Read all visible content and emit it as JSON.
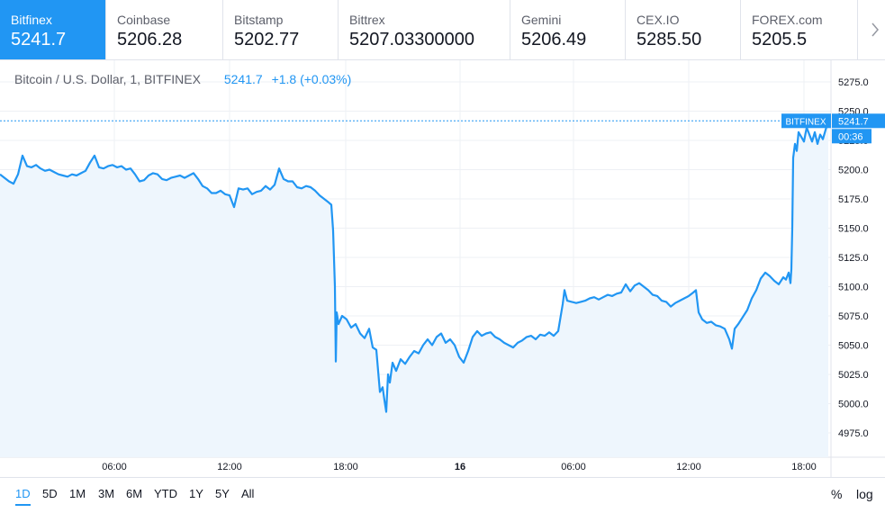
{
  "tabs": [
    {
      "name": "Bitfinex",
      "price": "5241.7",
      "active": true
    },
    {
      "name": "Coinbase",
      "price": "5206.28"
    },
    {
      "name": "Bitstamp",
      "price": "5202.77"
    },
    {
      "name": "Bittrex",
      "price": "5207.03300000"
    },
    {
      "name": "Gemini",
      "price": "5206.49"
    },
    {
      "name": "CEX.IO",
      "price": "5285.50"
    },
    {
      "name": "FOREX.com",
      "price": "5205.5"
    }
  ],
  "legend": {
    "symbol": "Bitcoin / U.S. Dollar, 1, BITFINEX",
    "last": "5241.7",
    "change": "+1.8 (+0.03%)"
  },
  "price_labels": {
    "exchange": "BITFINEX",
    "last": "5241.7",
    "countdown": "00:36"
  },
  "ranges": [
    "1D",
    "5D",
    "1M",
    "3M",
    "6M",
    "YTD",
    "1Y",
    "5Y",
    "All"
  ],
  "active_range": "1D",
  "bottom_options": {
    "percent": "%",
    "log": "log"
  },
  "colors": {
    "line": "#2196f3",
    "fill": "#eef6fd",
    "grid": "#eef0f4",
    "active_tab": "#2196f3"
  },
  "chart_data": {
    "type": "area",
    "y_ticks": [
      "5275.0",
      "5250.0",
      "5225.0",
      "5200.0",
      "5175.0",
      "5150.0",
      "5125.0",
      "5100.0",
      "5075.0",
      "5050.0",
      "5025.0",
      "5000.0",
      "4975.0"
    ],
    "x_ticks": [
      "06:00",
      "12:00",
      "18:00",
      "16",
      "06:00",
      "12:00",
      "18:00"
    ],
    "ylim": [
      4960,
      5290
    ],
    "last_value": 5241.7,
    "series": [
      {
        "values": [
          [
            0,
            5196
          ],
          [
            5,
            5193
          ],
          [
            10,
            5190
          ],
          [
            15,
            5188
          ],
          [
            20,
            5196
          ],
          [
            25,
            5212
          ],
          [
            30,
            5203
          ],
          [
            35,
            5202
          ],
          [
            40,
            5204
          ],
          [
            45,
            5201
          ],
          [
            50,
            5199
          ],
          [
            55,
            5200
          ],
          [
            60,
            5198
          ],
          [
            65,
            5196
          ],
          [
            70,
            5195
          ],
          [
            75,
            5194
          ],
          [
            80,
            5196
          ],
          [
            85,
            5195
          ],
          [
            90,
            5197
          ],
          [
            95,
            5199
          ],
          [
            100,
            5206
          ],
          [
            105,
            5212
          ],
          [
            110,
            5202
          ],
          [
            115,
            5201
          ],
          [
            120,
            5203
          ],
          [
            125,
            5204
          ],
          [
            130,
            5202
          ],
          [
            135,
            5203
          ],
          [
            140,
            5200
          ],
          [
            145,
            5201
          ],
          [
            150,
            5196
          ],
          [
            155,
            5190
          ],
          [
            160,
            5191
          ],
          [
            165,
            5195
          ],
          [
            170,
            5197
          ],
          [
            175,
            5196
          ],
          [
            180,
            5192
          ],
          [
            185,
            5191
          ],
          [
            190,
            5193
          ],
          [
            195,
            5194
          ],
          [
            200,
            5195
          ],
          [
            205,
            5193
          ],
          [
            210,
            5195
          ],
          [
            215,
            5197
          ],
          [
            220,
            5192
          ],
          [
            225,
            5186
          ],
          [
            230,
            5184
          ],
          [
            235,
            5180
          ],
          [
            240,
            5180
          ],
          [
            245,
            5182
          ],
          [
            250,
            5179
          ],
          [
            255,
            5178
          ],
          [
            260,
            5168
          ],
          [
            265,
            5184
          ],
          [
            270,
            5183
          ],
          [
            275,
            5184
          ],
          [
            280,
            5179
          ],
          [
            285,
            5181
          ],
          [
            290,
            5182
          ],
          [
            295,
            5186
          ],
          [
            300,
            5183
          ],
          [
            305,
            5187
          ],
          [
            310,
            5201
          ],
          [
            315,
            5192
          ],
          [
            320,
            5190
          ],
          [
            325,
            5190
          ],
          [
            330,
            5185
          ],
          [
            335,
            5184
          ],
          [
            340,
            5186
          ],
          [
            345,
            5185
          ],
          [
            350,
            5182
          ],
          [
            355,
            5178
          ],
          [
            360,
            5175
          ],
          [
            365,
            5172
          ],
          [
            368,
            5170
          ],
          [
            370,
            5148
          ],
          [
            372,
            5100
          ],
          [
            373,
            5036
          ],
          [
            374,
            5078
          ],
          [
            376,
            5068
          ],
          [
            380,
            5075
          ],
          [
            385,
            5072
          ],
          [
            390,
            5065
          ],
          [
            395,
            5068
          ],
          [
            400,
            5060
          ],
          [
            405,
            5056
          ],
          [
            410,
            5064
          ],
          [
            414,
            5048
          ],
          [
            418,
            5046
          ],
          [
            420,
            5028
          ],
          [
            422,
            5010
          ],
          [
            425,
            5014
          ],
          [
            427,
            5003
          ],
          [
            429,
            4993
          ],
          [
            431,
            5025
          ],
          [
            433,
            5018
          ],
          [
            436,
            5035
          ],
          [
            440,
            5028
          ],
          [
            445,
            5038
          ],
          [
            450,
            5034
          ],
          [
            455,
            5040
          ],
          [
            460,
            5045
          ],
          [
            465,
            5043
          ],
          [
            470,
            5050
          ],
          [
            475,
            5055
          ],
          [
            480,
            5050
          ],
          [
            485,
            5057
          ],
          [
            490,
            5060
          ],
          [
            495,
            5052
          ],
          [
            500,
            5055
          ],
          [
            505,
            5050
          ],
          [
            510,
            5040
          ],
          [
            515,
            5035
          ],
          [
            520,
            5045
          ],
          [
            525,
            5057
          ],
          [
            530,
            5062
          ],
          [
            535,
            5058
          ],
          [
            540,
            5060
          ],
          [
            545,
            5061
          ],
          [
            550,
            5057
          ],
          [
            555,
            5055
          ],
          [
            560,
            5052
          ],
          [
            565,
            5050
          ],
          [
            570,
            5048
          ],
          [
            575,
            5052
          ],
          [
            580,
            5054
          ],
          [
            585,
            5057
          ],
          [
            590,
            5058
          ],
          [
            595,
            5055
          ],
          [
            600,
            5059
          ],
          [
            605,
            5058
          ],
          [
            610,
            5061
          ],
          [
            615,
            5058
          ],
          [
            620,
            5062
          ],
          [
            625,
            5085
          ],
          [
            627,
            5097
          ],
          [
            630,
            5088
          ],
          [
            635,
            5087
          ],
          [
            640,
            5086
          ],
          [
            645,
            5087
          ],
          [
            650,
            5088
          ],
          [
            655,
            5090
          ],
          [
            660,
            5091
          ],
          [
            665,
            5089
          ],
          [
            670,
            5091
          ],
          [
            675,
            5093
          ],
          [
            680,
            5092
          ],
          [
            685,
            5094
          ],
          [
            690,
            5095
          ],
          [
            695,
            5102
          ],
          [
            700,
            5096
          ],
          [
            705,
            5101
          ],
          [
            710,
            5103
          ],
          [
            715,
            5100
          ],
          [
            720,
            5097
          ],
          [
            725,
            5093
          ],
          [
            730,
            5092
          ],
          [
            735,
            5088
          ],
          [
            740,
            5087
          ],
          [
            745,
            5083
          ],
          [
            750,
            5086
          ],
          [
            755,
            5088
          ],
          [
            760,
            5090
          ],
          [
            765,
            5092
          ],
          [
            770,
            5095
          ],
          [
            773,
            5097
          ],
          [
            776,
            5078
          ],
          [
            780,
            5072
          ],
          [
            785,
            5069
          ],
          [
            790,
            5070
          ],
          [
            795,
            5067
          ],
          [
            800,
            5066
          ],
          [
            805,
            5064
          ],
          [
            810,
            5055
          ],
          [
            813,
            5047
          ],
          [
            816,
            5064
          ],
          [
            820,
            5068
          ],
          [
            825,
            5074
          ],
          [
            830,
            5080
          ],
          [
            835,
            5090
          ],
          [
            840,
            5097
          ],
          [
            845,
            5107
          ],
          [
            850,
            5112
          ],
          [
            855,
            5109
          ],
          [
            860,
            5105
          ],
          [
            865,
            5102
          ],
          [
            870,
            5108
          ],
          [
            873,
            5106
          ],
          [
            876,
            5112
          ],
          [
            878,
            5103
          ],
          [
            879,
            5115
          ],
          [
            880,
            5150
          ],
          [
            881,
            5210
          ],
          [
            883,
            5222
          ],
          [
            885,
            5216
          ],
          [
            887,
            5232
          ],
          [
            890,
            5228
          ],
          [
            893,
            5224
          ],
          [
            896,
            5236
          ],
          [
            899,
            5230
          ],
          [
            902,
            5224
          ],
          [
            905,
            5232
          ],
          [
            908,
            5222
          ],
          [
            911,
            5230
          ],
          [
            914,
            5226
          ],
          [
            917,
            5234
          ],
          [
            920,
            5241.7
          ]
        ]
      }
    ]
  }
}
